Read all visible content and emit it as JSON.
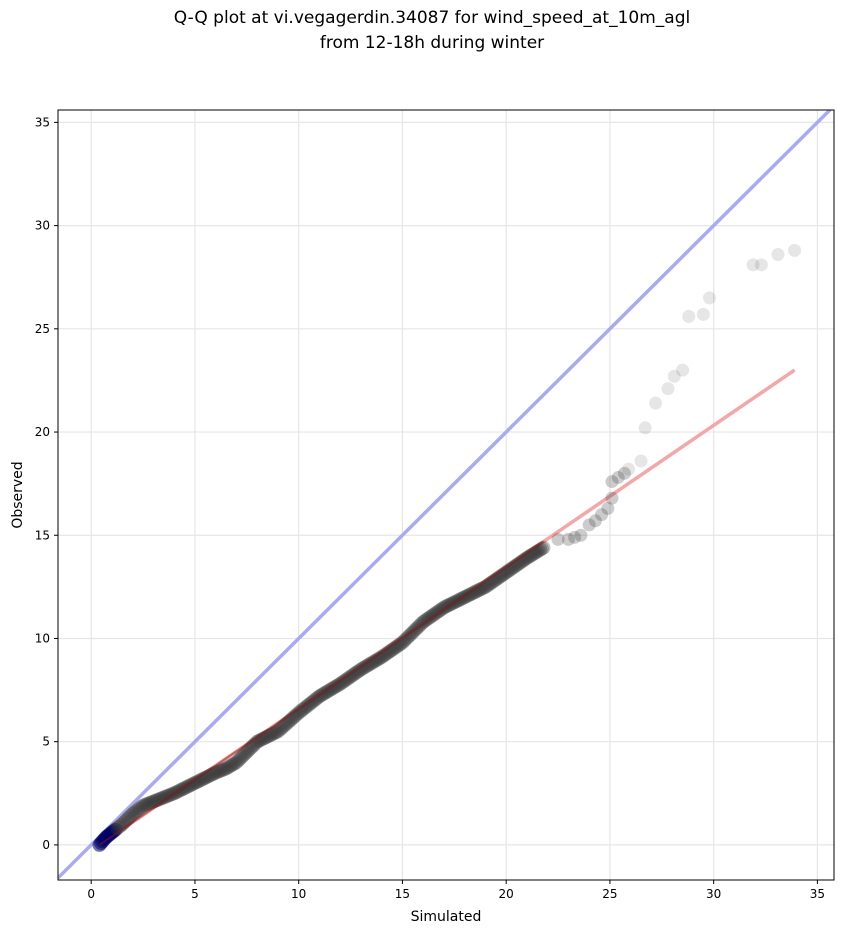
{
  "chart_data": {
    "type": "scatter",
    "title_lines": [
      "Q-Q plot at vi.vegagerdin.34087 for wind_speed_at_10m_agl",
      "from 12-18h during winter"
    ],
    "xlabel": "Simulated",
    "ylabel": "Observed",
    "xlim": [
      -1.6,
      35.8
    ],
    "ylim": [
      -1.7,
      35.6
    ],
    "xticks": [
      0,
      5,
      10,
      15,
      20,
      25,
      30,
      35
    ],
    "yticks": [
      0,
      5,
      10,
      15,
      20,
      25,
      30,
      35
    ],
    "grid": true,
    "colors": {
      "points": "#333333",
      "low_points": "#000066",
      "identity_line": "#aaaaf2",
      "fit_line": "#f5a6a6"
    },
    "identity_line": {
      "x": [
        -1.6,
        35.8
      ],
      "y": [
        -1.6,
        35.8
      ]
    },
    "fit_line": {
      "x": [
        0.4,
        33.9
      ],
      "y": [
        0.0,
        23.0
      ]
    },
    "dense_curve": [
      [
        0.4,
        0.0
      ],
      [
        0.7,
        0.35
      ],
      [
        1.0,
        0.6
      ],
      [
        1.5,
        1.0
      ],
      [
        2.0,
        1.5
      ],
      [
        2.5,
        1.9
      ],
      [
        3.0,
        2.1
      ],
      [
        4.0,
        2.5
      ],
      [
        5.0,
        3.0
      ],
      [
        6.0,
        3.5
      ],
      [
        6.5,
        3.7
      ],
      [
        7.0,
        4.0
      ],
      [
        8.0,
        5.0
      ],
      [
        9.0,
        5.5
      ],
      [
        10.0,
        6.4
      ],
      [
        11.0,
        7.2
      ],
      [
        12.0,
        7.8
      ],
      [
        13.0,
        8.5
      ],
      [
        14.0,
        9.1
      ],
      [
        15.0,
        9.8
      ],
      [
        16.0,
        10.8
      ],
      [
        17.0,
        11.5
      ],
      [
        18.0,
        12.0
      ],
      [
        19.0,
        12.5
      ],
      [
        20.0,
        13.2
      ],
      [
        21.0,
        13.9
      ],
      [
        21.8,
        14.4
      ]
    ],
    "tail_points": [
      [
        22.5,
        14.8
      ],
      [
        23.0,
        14.8
      ],
      [
        23.3,
        14.9
      ],
      [
        23.6,
        15.0
      ],
      [
        24.0,
        15.5
      ],
      [
        24.3,
        15.7
      ],
      [
        24.6,
        16.0
      ],
      [
        24.9,
        16.3
      ],
      [
        25.1,
        16.8
      ],
      [
        25.1,
        17.6
      ],
      [
        25.4,
        17.8
      ],
      [
        25.7,
        18.0
      ],
      [
        25.9,
        18.2
      ],
      [
        26.5,
        18.6
      ],
      [
        26.7,
        20.2
      ],
      [
        27.2,
        21.4
      ],
      [
        27.8,
        22.1
      ],
      [
        28.1,
        22.7
      ],
      [
        28.5,
        23.0
      ],
      [
        28.8,
        25.6
      ],
      [
        29.5,
        25.7
      ],
      [
        29.8,
        26.5
      ],
      [
        31.9,
        28.1
      ],
      [
        32.3,
        28.1
      ],
      [
        33.1,
        28.6
      ],
      [
        33.9,
        28.8
      ]
    ]
  }
}
